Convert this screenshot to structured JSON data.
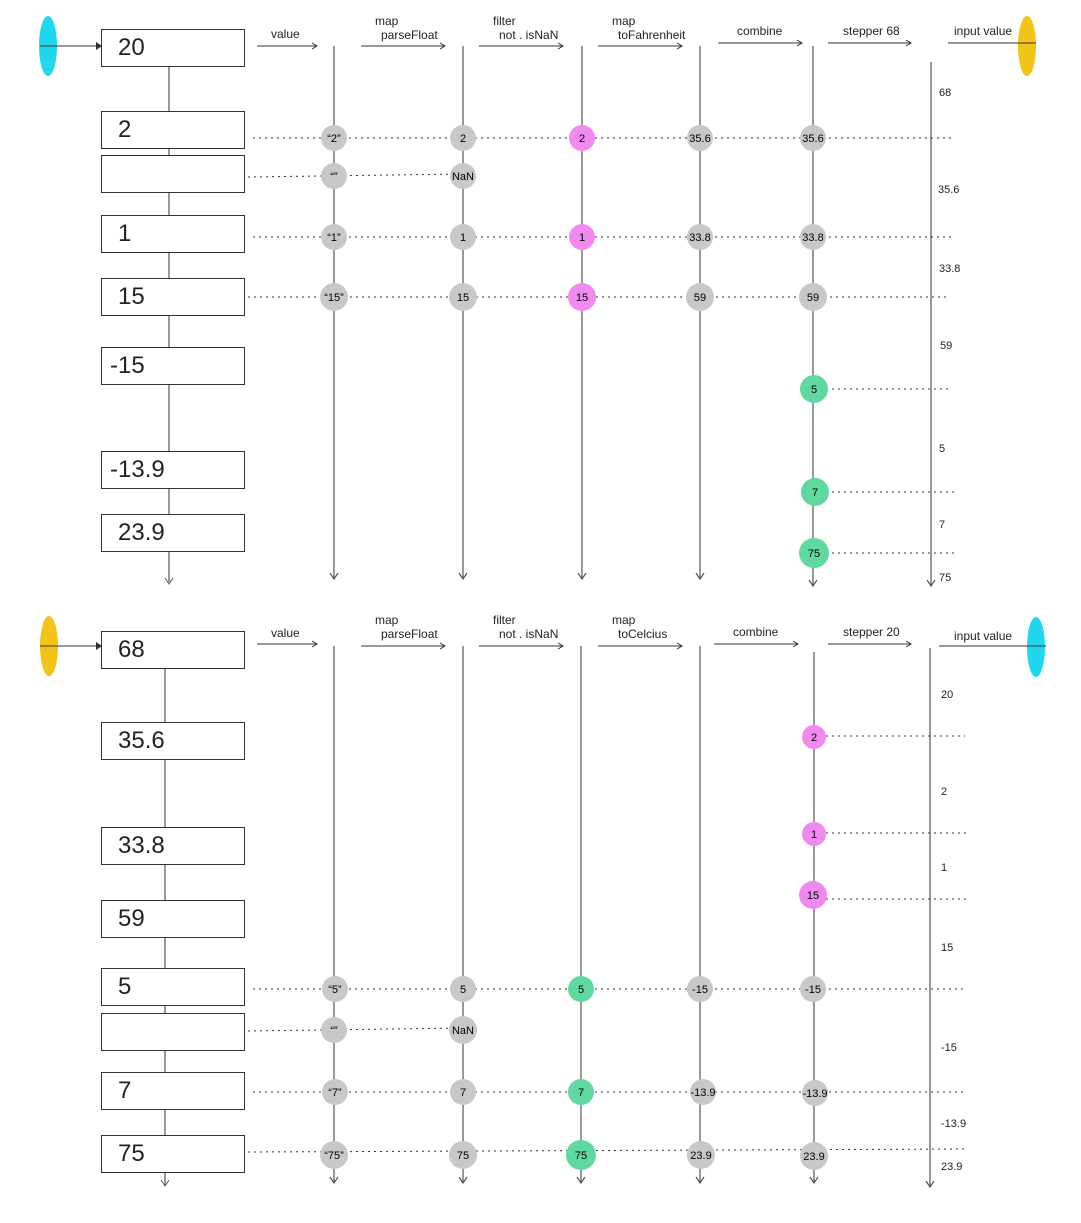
{
  "colors": {
    "gray": "#c8c8c8",
    "pink": "#f08af0",
    "green": "#5fd9a0",
    "cyan": "#20d8ee",
    "yellow": "#f2c418",
    "line": "#555555"
  },
  "panels": [
    {
      "id": "top",
      "source_ellipse_color": "cyan",
      "sink_ellipse_color": "yellow",
      "headers": {
        "value": "value",
        "map1_title": "map",
        "map1_sub": "parseFloat",
        "filter_title": "filter",
        "filter_sub": "not . isNaN",
        "map2_title": "map",
        "map2_sub": "toFahrenheit",
        "combine": "combine",
        "stepper": "stepper 68",
        "output": "input value"
      },
      "input_boxes": [
        {
          "value": "20"
        },
        {
          "value": "2"
        },
        {
          "value": ""
        },
        {
          "value": "1"
        },
        {
          "value": "15"
        },
        {
          "value": "-15"
        },
        {
          "value": "-13.9"
        },
        {
          "value": "23.9"
        }
      ],
      "event_rows": [
        {
          "value": "“2”",
          "parsed": "2",
          "filtered": "2",
          "mapped": "35.6",
          "combined": "35.6"
        },
        {
          "value": "“”",
          "parsed": "NaN"
        },
        {
          "value": "“1”",
          "parsed": "1",
          "filtered": "1",
          "mapped": "33.8",
          "combined": "33.8"
        },
        {
          "value": "“15”",
          "parsed": "15",
          "filtered": "15",
          "mapped": "59",
          "combined": "59"
        }
      ],
      "external_events": [
        {
          "value": "5",
          "color": "green"
        },
        {
          "value": "7",
          "color": "green"
        },
        {
          "value": "75",
          "color": "green"
        }
      ],
      "output_labels": [
        "68",
        "35.6",
        "33.8",
        "59",
        "5",
        "7",
        "75"
      ]
    },
    {
      "id": "bottom",
      "source_ellipse_color": "yellow",
      "sink_ellipse_color": "cyan",
      "headers": {
        "value": "value",
        "map1_title": "map",
        "map1_sub": "parseFloat",
        "filter_title": "filter",
        "filter_sub": "not . isNaN",
        "map2_title": "map",
        "map2_sub": "toCelcius",
        "combine": "combine",
        "stepper": "stepper 20",
        "output": "input value"
      },
      "input_boxes": [
        {
          "value": "68"
        },
        {
          "value": "35.6"
        },
        {
          "value": "33.8"
        },
        {
          "value": "59"
        },
        {
          "value": "5"
        },
        {
          "value": ""
        },
        {
          "value": "7"
        },
        {
          "value": "75"
        }
      ],
      "event_rows": [
        {
          "value": "“5”",
          "parsed": "5",
          "filtered": "5",
          "mapped": "-15",
          "combined": "-15"
        },
        {
          "value": "“”",
          "parsed": "NaN"
        },
        {
          "value": "“7”",
          "parsed": "7",
          "filtered": "7",
          "mapped": "-13.9",
          "combined": "-13.9"
        },
        {
          "value": "“75”",
          "parsed": "75",
          "filtered": "75",
          "mapped": "23.9",
          "combined": "23.9"
        }
      ],
      "external_events": [
        {
          "value": "2",
          "color": "pink"
        },
        {
          "value": "1",
          "color": "pink"
        },
        {
          "value": "15",
          "color": "pink"
        }
      ],
      "output_labels": [
        "20",
        "2",
        "1",
        "15",
        "-15",
        "-13.9",
        "23.9"
      ]
    }
  ]
}
